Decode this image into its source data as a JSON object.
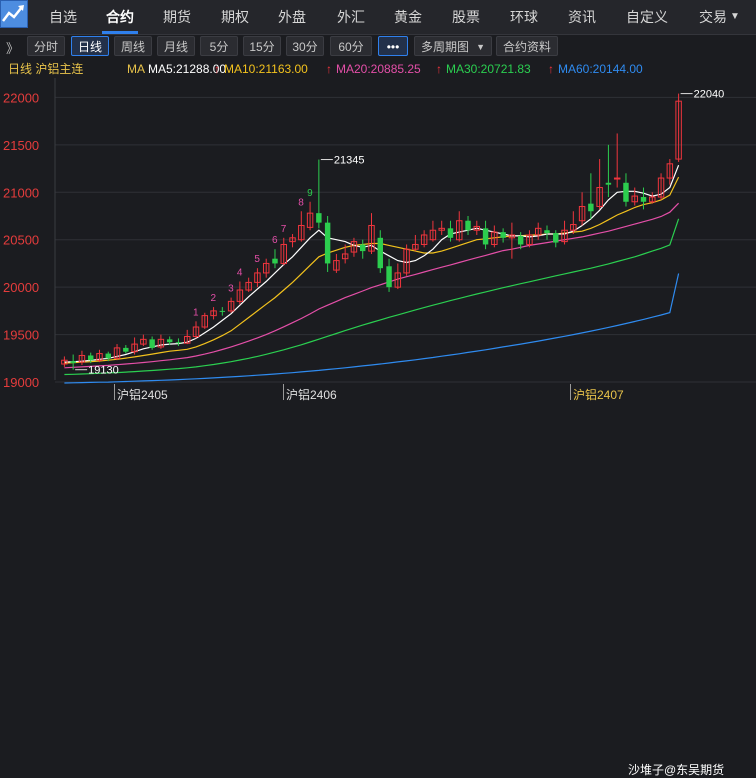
{
  "top_tabs": [
    {
      "label": "自选",
      "x": 49
    },
    {
      "label": "合约",
      "x": 106
    },
    {
      "label": "期货",
      "x": 163
    },
    {
      "label": "期权",
      "x": 221
    },
    {
      "label": "外盘",
      "x": 278
    },
    {
      "label": "外汇",
      "x": 337
    },
    {
      "label": "黄金",
      "x": 394
    },
    {
      "label": "股票",
      "x": 452
    },
    {
      "label": "环球",
      "x": 510
    },
    {
      "label": "资讯",
      "x": 568
    },
    {
      "label": "自定义",
      "x": 626
    },
    {
      "label": "交易",
      "x": 699
    }
  ],
  "toolbar": {
    "expand": "》",
    "periods": [
      "分时",
      "日线",
      "周线",
      "月线",
      "5分",
      "15分",
      "30分",
      "60分"
    ],
    "more": "•••",
    "multi_period": "多周期图",
    "contract_info": "合约资料"
  },
  "ma_row": {
    "prefix": "日线  沪铝主连",
    "ma_label": "MA",
    "ma5": "MA5:21288.00",
    "ma10": "MA10:21163.00",
    "ma20": "MA20:20885.25",
    "ma30": "MA30:20721.83",
    "ma60": "MA60:20144.00"
  },
  "colors": {
    "up": "#f0353d",
    "down": "#2ccd4e",
    "ma5": "#ffffff",
    "ma10": "#f3c21d",
    "ma20": "#e44fa8",
    "ma30": "#2bcf50",
    "ma60": "#2f8bf0",
    "axis_text": "#e43c3c"
  },
  "chart_data": {
    "type": "candlestick",
    "y_ticks": [
      22000,
      21500,
      21000,
      20500,
      20000,
      19500,
      19000
    ],
    "ylim": [
      18990,
      22120
    ],
    "annotations": {
      "high": "21345",
      "latest_high": "22040",
      "low": "19130"
    },
    "count_labels": [
      "1",
      "2",
      "3",
      "4",
      "5",
      "6",
      "7",
      "8",
      "9"
    ],
    "candles": [
      [
        19190,
        19230,
        19160,
        19270
      ],
      [
        19220,
        19200,
        19130,
        19290
      ],
      [
        19210,
        19280,
        19180,
        19330
      ],
      [
        19280,
        19230,
        19200,
        19310
      ],
      [
        19230,
        19300,
        19210,
        19340
      ],
      [
        19300,
        19250,
        19220,
        19320
      ],
      [
        19250,
        19360,
        19230,
        19400
      ],
      [
        19360,
        19320,
        19300,
        19390
      ],
      [
        19320,
        19400,
        19290,
        19470
      ],
      [
        19400,
        19450,
        19380,
        19500
      ],
      [
        19450,
        19360,
        19340,
        19480
      ],
      [
        19370,
        19450,
        19350,
        19500
      ],
      [
        19450,
        19420,
        19390,
        19480
      ],
      [
        19420,
        19410,
        19380,
        19460
      ],
      [
        19410,
        19480,
        19400,
        19550
      ],
      [
        19480,
        19580,
        19460,
        19640
      ],
      [
        19580,
        19700,
        19560,
        19730
      ],
      [
        19700,
        19750,
        19660,
        19790
      ],
      [
        19750,
        19740,
        19700,
        19790
      ],
      [
        19750,
        19850,
        19730,
        19890
      ],
      [
        19850,
        19970,
        19820,
        20060
      ],
      [
        19970,
        20050,
        19950,
        20100
      ],
      [
        20050,
        20150,
        20000,
        20200
      ],
      [
        20150,
        20250,
        20100,
        20300
      ],
      [
        20300,
        20250,
        20200,
        20400
      ],
      [
        20250,
        20450,
        20230,
        20520
      ],
      [
        20480,
        20520,
        20420,
        20560
      ],
      [
        20500,
        20650,
        20480,
        20800
      ],
      [
        20630,
        20780,
        20600,
        20900
      ],
      [
        20780,
        20680,
        20620,
        21345
      ],
      [
        20680,
        20250,
        20160,
        20750
      ],
      [
        20180,
        20280,
        20150,
        20350
      ],
      [
        20300,
        20350,
        20250,
        20450
      ],
      [
        20370,
        20480,
        20320,
        20520
      ],
      [
        20450,
        20380,
        20300,
        20500
      ],
      [
        20380,
        20650,
        20350,
        20780
      ],
      [
        20520,
        20200,
        20150,
        20600
      ],
      [
        20220,
        20000,
        19950,
        20300
      ],
      [
        20000,
        20150,
        19980,
        20250
      ],
      [
        20150,
        20400,
        20120,
        20450
      ],
      [
        20400,
        20450,
        20380,
        20550
      ],
      [
        20450,
        20550,
        20420,
        20600
      ],
      [
        20500,
        20600,
        20480,
        20700
      ],
      [
        20600,
        20620,
        20550,
        20700
      ],
      [
        20620,
        20520,
        20480,
        20700
      ],
      [
        20500,
        20700,
        20480,
        20800
      ],
      [
        20700,
        20600,
        20550,
        20750
      ],
      [
        20600,
        20640,
        20550,
        20700
      ],
      [
        20620,
        20450,
        20400,
        20700
      ],
      [
        20450,
        20580,
        20420,
        20650
      ],
      [
        20580,
        20520,
        20470,
        20620
      ],
      [
        20520,
        20550,
        20300,
        20680
      ],
      [
        20540,
        20450,
        20400,
        20580
      ],
      [
        20450,
        20550,
        20420,
        20600
      ],
      [
        20550,
        20620,
        20500,
        20680
      ],
      [
        20600,
        20570,
        20500,
        20650
      ],
      [
        20570,
        20470,
        20420,
        20600
      ],
      [
        20480,
        20600,
        20450,
        20700
      ],
      [
        20600,
        20660,
        20560,
        20800
      ],
      [
        20700,
        20850,
        20650,
        21000
      ],
      [
        20880,
        20800,
        20720,
        21200
      ],
      [
        20850,
        21050,
        20820,
        21350
      ],
      [
        21100,
        21080,
        20950,
        21500
      ],
      [
        21150,
        21150,
        21050,
        21620
      ],
      [
        21100,
        20900,
        20850,
        21200
      ],
      [
        20900,
        20960,
        20860,
        21050
      ],
      [
        20950,
        20900,
        20820,
        21050
      ],
      [
        20900,
        20950,
        20880,
        21000
      ],
      [
        20950,
        21150,
        20920,
        21200
      ],
      [
        21150,
        21300,
        21080,
        21350
      ],
      [
        21350,
        21960,
        21320,
        22040
      ]
    ],
    "ma5": [
      19210,
      19215,
      19220,
      19228,
      19240,
      19250,
      19270,
      19290,
      19320,
      19350,
      19370,
      19390,
      19400,
      19405,
      19420,
      19460,
      19520,
      19580,
      19650,
      19720,
      19810,
      19900,
      19980,
      20060,
      20150,
      20240,
      20320,
      20420,
      20520,
      20600,
      20520,
      20500,
      20480,
      20440,
      20420,
      20440,
      20380,
      20330,
      20280,
      20260,
      20280,
      20330,
      20400,
      20500,
      20560,
      20580,
      20600,
      20620,
      20600,
      20580,
      20560,
      20540,
      20540,
      20530,
      20540,
      20560,
      20560,
      20560,
      20590,
      20650,
      20720,
      20810,
      20920,
      21000,
      21010,
      21010,
      20990,
      20960,
      20980,
      21050,
      21285
    ],
    "ma10": [
      19200,
      19205,
      19210,
      19215,
      19222,
      19230,
      19240,
      19252,
      19265,
      19280,
      19295,
      19310,
      19325,
      19335,
      19345,
      19370,
      19405,
      19445,
      19490,
      19540,
      19610,
      19680,
      19750,
      19820,
      19890,
      19970,
      20050,
      20140,
      20230,
      20320,
      20360,
      20390,
      20420,
      20440,
      20450,
      20460,
      20460,
      20440,
      20420,
      20400,
      20380,
      20360,
      20360,
      20380,
      20410,
      20440,
      20470,
      20500,
      20510,
      20520,
      20530,
      20540,
      20540,
      20550,
      20550,
      20560,
      20560,
      20570,
      20580,
      20590,
      20620,
      20660,
      20710,
      20760,
      20800,
      20840,
      20870,
      20890,
      20920,
      20970,
      21160
    ],
    "ma20": [
      19150,
      19155,
      19160,
      19165,
      19170,
      19176,
      19183,
      19190,
      19198,
      19206,
      19215,
      19225,
      19235,
      19246,
      19258,
      19275,
      19295,
      19318,
      19343,
      19370,
      19400,
      19432,
      19465,
      19500,
      19540,
      19582,
      19625,
      19670,
      19718,
      19770,
      19810,
      19850,
      19890,
      19925,
      19960,
      19995,
      20025,
      20055,
      20085,
      20110,
      20135,
      20160,
      20185,
      20210,
      20235,
      20260,
      20285,
      20310,
      20335,
      20360,
      20385,
      20400,
      20420,
      20440,
      20455,
      20470,
      20485,
      20500,
      20515,
      20530,
      20550,
      20570,
      20590,
      20615,
      20640,
      20665,
      20690,
      20715,
      20745,
      20790,
      20885
    ],
    "ma30": [
      19080,
      19082,
      19085,
      19088,
      19092,
      19096,
      19100,
      19105,
      19110,
      19116,
      19122,
      19128,
      19135,
      19142,
      19150,
      19160,
      19172,
      19185,
      19200,
      19215,
      19232,
      19250,
      19270,
      19292,
      19316,
      19340,
      19366,
      19393,
      19422,
      19452,
      19482,
      19512,
      19542,
      19572,
      19600,
      19628,
      19655,
      19682,
      19708,
      19734,
      19760,
      19785,
      19810,
      19834,
      19858,
      19882,
      19905,
      19928,
      19950,
      19972,
      19994,
      20015,
      20036,
      20057,
      20078,
      20099,
      20120,
      20140,
      20160,
      20180,
      20200,
      20222,
      20245,
      20270,
      20295,
      20320,
      20350,
      20380,
      20410,
      20445,
      20720
    ],
    "ma60": [
      18990,
      18992,
      18994,
      18996,
      18998,
      19000,
      19003,
      19006,
      19009,
      19012,
      19015,
      19018,
      19022,
      19026,
      19030,
      19034,
      19039,
      19044,
      19049,
      19054,
      19060,
      19066,
      19072,
      19078,
      19085,
      19092,
      19099,
      19107,
      19115,
      19123,
      19132,
      19141,
      19150,
      19160,
      19170,
      19180,
      19190,
      19201,
      19212,
      19223,
      19235,
      19247,
      19259,
      19272,
      19285,
      19298,
      19312,
      19326,
      19340,
      19355,
      19370,
      19385,
      19400,
      19416,
      19432,
      19448,
      19465,
      19482,
      19500,
      19518,
      19537,
      19556,
      19576,
      19596,
      19617,
      19638,
      19660,
      19683,
      19707,
      19732,
      20144
    ]
  },
  "bottom": {
    "contracts": [
      {
        "label": "沪铝2405",
        "x": 117
      },
      {
        "label": "沪铝2406",
        "x": 286
      },
      {
        "label": "沪铝2407",
        "x": 573
      }
    ],
    "watermark": "沙堆子@东吴期货"
  }
}
